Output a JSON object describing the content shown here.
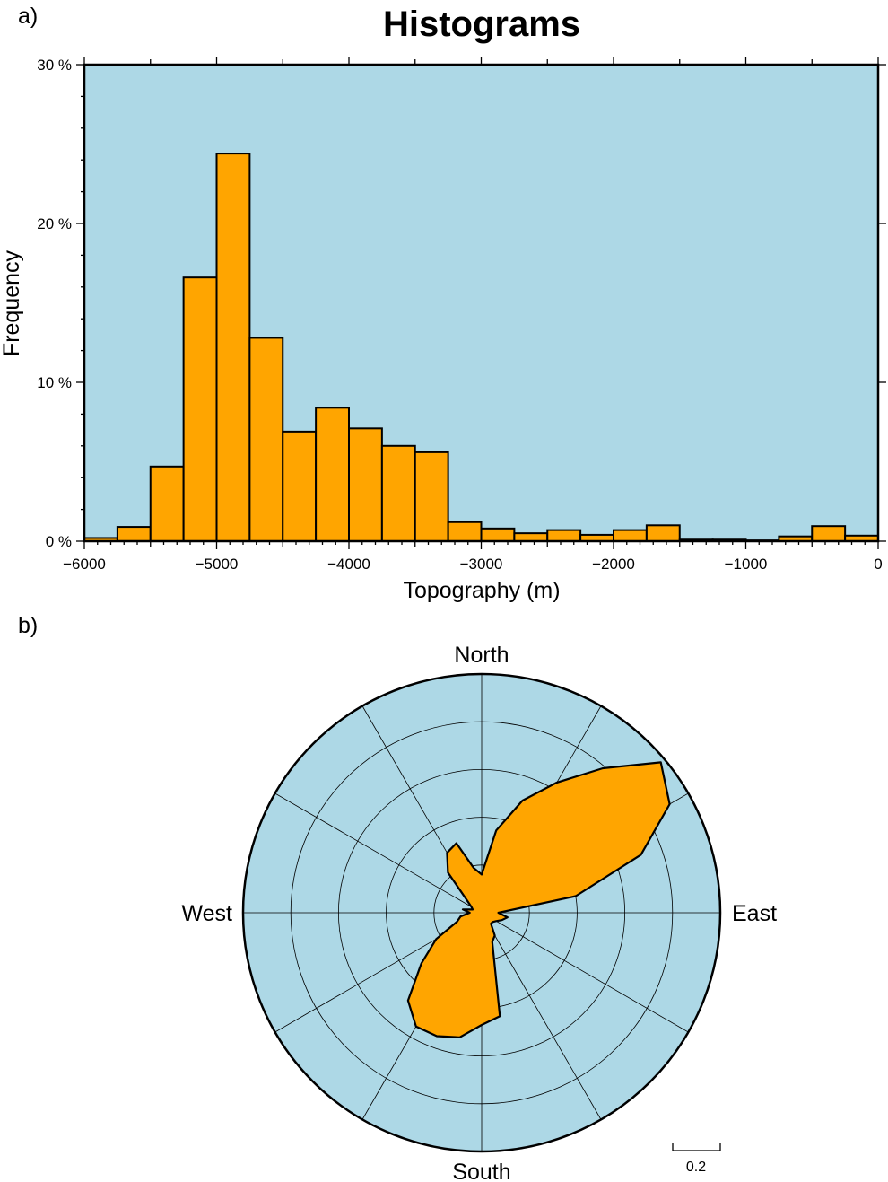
{
  "panels": {
    "a": {
      "label": "a)"
    },
    "b": {
      "label": "b)"
    }
  },
  "chart_data": [
    {
      "type": "bar",
      "title": "Histograms",
      "xlabel": "Topography (m)",
      "ylabel": "Frequency",
      "bin_width": 250,
      "bin_starts": [
        -6000,
        -5750,
        -5500,
        -5250,
        -5000,
        -4750,
        -4500,
        -4250,
        -4000,
        -3750,
        -3500,
        -3250,
        -3000,
        -2750,
        -2500,
        -2250,
        -2000,
        -1750,
        -1500,
        -1250,
        -1000,
        -750,
        -500,
        -250
      ],
      "values": [
        0.2,
        0.9,
        4.7,
        16.6,
        24.4,
        12.8,
        6.9,
        8.4,
        7.1,
        6.0,
        5.6,
        1.2,
        0.8,
        0.5,
        0.7,
        0.4,
        0.7,
        1.0,
        0.1,
        0.1,
        0.05,
        0.3,
        0.95,
        0.35
      ],
      "xlim": [
        -6000,
        0
      ],
      "ylim": [
        0,
        30
      ],
      "xticks": [
        -6000,
        -5000,
        -4000,
        -3000,
        -2000,
        -1000,
        0
      ],
      "xtick_labels": [
        "−6000",
        "−5000",
        "−4000",
        "−3000",
        "−2000",
        "−1000",
        "0"
      ],
      "yticks": [
        0,
        10,
        20,
        30
      ],
      "ytick_labels": [
        "0 %",
        "10 %",
        "20 %",
        "30 %"
      ],
      "bar_color": "#ffa500",
      "background_color": "#add8e6",
      "grid": false
    },
    {
      "type": "rose",
      "direction_labels": {
        "north": "North",
        "east": "East",
        "south": "South",
        "west": "West"
      },
      "radial_max": 1.0,
      "ring_step": 0.2,
      "spoke_step_deg": 30,
      "scale_bar_label": "0.2",
      "angles_deg": [
        0,
        10,
        20,
        30,
        40,
        50,
        60,
        70,
        80,
        90,
        100,
        110,
        120,
        130,
        140,
        150,
        160,
        170,
        180,
        190,
        200,
        210,
        220,
        230,
        240,
        250,
        260,
        270,
        280,
        290,
        300,
        310,
        320,
        330,
        340,
        350
      ],
      "radii": [
        0.16,
        0.35,
        0.5,
        0.63,
        0.79,
        0.98,
        0.91,
        0.71,
        0.4,
        0.07,
        0.11,
        0.09,
        0.07,
        0.06,
        0.06,
        0.11,
        0.13,
        0.44,
        0.47,
        0.53,
        0.55,
        0.55,
        0.48,
        0.33,
        0.22,
        0.11,
        0.09,
        0.05,
        0.08,
        0.04,
        0.05,
        0.08,
        0.22,
        0.29,
        0.31,
        0.19
      ],
      "fill_color": "#ffa500",
      "background_color": "#add8e6"
    }
  ]
}
